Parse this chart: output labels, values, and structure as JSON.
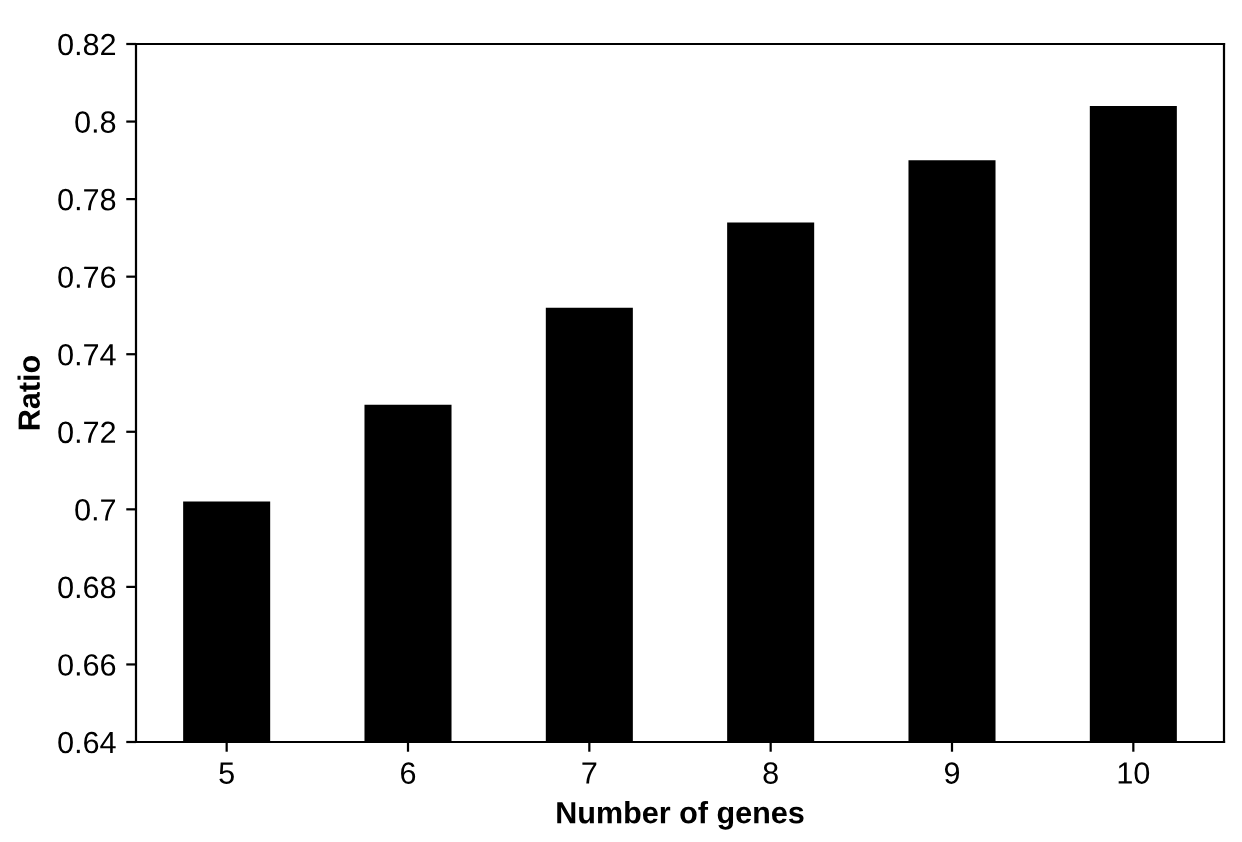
{
  "chart_data": {
    "type": "bar",
    "xlabel": "Number of genes",
    "ylabel": "Ratio",
    "categories": [
      "5",
      "6",
      "7",
      "8",
      "9",
      "10"
    ],
    "values": [
      0.702,
      0.727,
      0.752,
      0.774,
      0.79,
      0.804
    ],
    "color": "#000000",
    "ylim": [
      0.64,
      0.82
    ],
    "yticks": [
      0.64,
      0.66,
      0.68,
      0.7,
      0.72,
      0.74,
      0.76,
      0.78,
      0.8,
      0.82
    ],
    "grid": false,
    "legend": false
  }
}
